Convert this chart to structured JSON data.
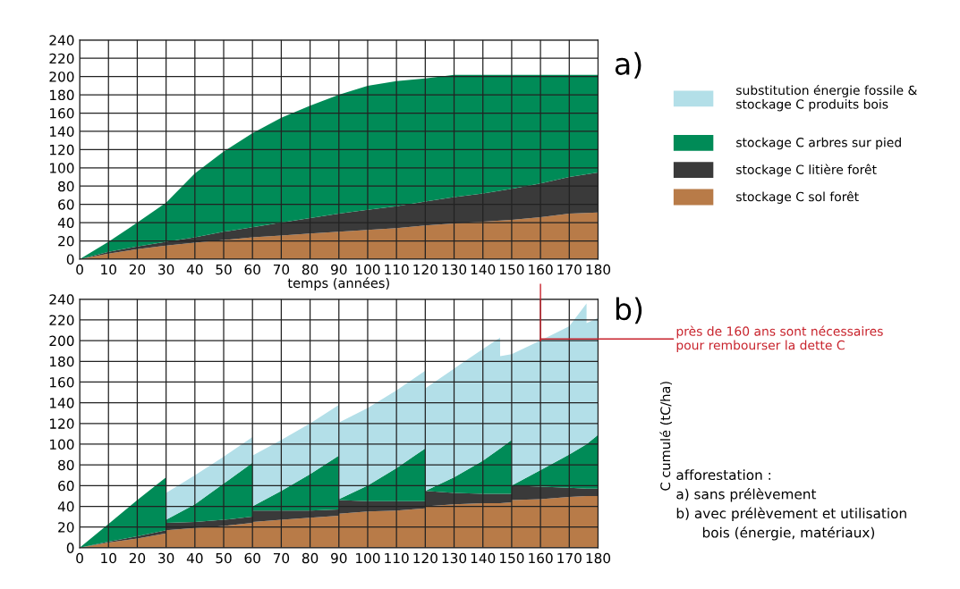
{
  "chart_data": [
    {
      "type": "area",
      "title": "a)",
      "xlabel": "temps (années)",
      "stacked": true,
      "xlim": [
        0,
        180
      ],
      "ylim": [
        0,
        240
      ],
      "xticks": [
        0,
        10,
        20,
        30,
        40,
        50,
        60,
        70,
        80,
        90,
        100,
        110,
        120,
        130,
        140,
        150,
        160,
        170,
        180
      ],
      "yticks": [
        0,
        20,
        40,
        60,
        80,
        100,
        120,
        140,
        160,
        180,
        200,
        220,
        240
      ],
      "grid": true,
      "legend": "right",
      "x": [
        0,
        10,
        20,
        30,
        40,
        50,
        60,
        70,
        80,
        90,
        100,
        110,
        120,
        130,
        140,
        150,
        160,
        170,
        180
      ],
      "series": [
        {
          "name": "stockage C sol forêt",
          "color": "#b87b48",
          "values": [
            0,
            6,
            11,
            15,
            18,
            21,
            24,
            26,
            28,
            30,
            32,
            34,
            37,
            39,
            41,
            43,
            46,
            50,
            51
          ]
        },
        {
          "name": "stockage C litière forêt",
          "color": "#3a3a3a",
          "values": [
            0,
            2,
            3,
            4,
            6,
            9,
            11,
            14,
            17,
            20,
            22,
            24,
            26,
            29,
            31,
            34,
            37,
            40,
            44
          ]
        },
        {
          "name": "stockage C arbres sur pied",
          "color": "#008b57",
          "values": [
            0,
            11,
            26,
            43,
            70,
            88,
            103,
            115,
            123,
            130,
            136,
            137,
            135,
            134,
            130,
            125,
            119,
            112,
            107
          ]
        }
      ]
    },
    {
      "type": "area",
      "title": "b)",
      "ylabel": "C cumulé (tC/ha)",
      "stacked": true,
      "xlim": [
        0,
        180
      ],
      "ylim": [
        0,
        240
      ],
      "xticks": [
        0,
        10,
        20,
        30,
        40,
        50,
        60,
        70,
        80,
        90,
        100,
        110,
        120,
        130,
        140,
        150,
        160,
        170,
        180
      ],
      "yticks": [
        0,
        20,
        40,
        60,
        80,
        100,
        120,
        140,
        160,
        180,
        200,
        220,
        240
      ],
      "grid": true,
      "legend": "top right",
      "ref_lines": [
        {
          "axis": "x",
          "value": 160,
          "color": "#c8232c"
        }
      ],
      "x": [
        0,
        10,
        20,
        30,
        30,
        40,
        50,
        60,
        60,
        70,
        80,
        90,
        90,
        100,
        110,
        120,
        120,
        130,
        140,
        146,
        146,
        150,
        150,
        160,
        170,
        176,
        176,
        180
      ],
      "series": [
        {
          "color": "#b87b48",
          "values": [
            0,
            5,
            9,
            14,
            17,
            19,
            21,
            24,
            25,
            27,
            29,
            31,
            33,
            35,
            36,
            38,
            40,
            42,
            43,
            43,
            43,
            44,
            46,
            47,
            49,
            50,
            50,
            50
          ]
        },
        {
          "color": "#3a3a3a",
          "values": [
            0,
            1,
            2,
            3,
            7,
            6,
            6,
            6,
            11,
            9,
            7,
            6,
            13,
            10,
            9,
            7,
            15,
            11,
            9,
            9,
            9,
            8,
            14,
            12,
            9,
            7,
            7,
            7
          ]
        },
        {
          "color": "#008b57",
          "values": [
            0,
            17,
            35,
            51,
            3,
            17,
            35,
            52,
            4,
            19,
            35,
            52,
            1,
            15,
            32,
            51,
            0,
            15,
            32,
            44,
            44,
            52,
            0,
            16,
            32,
            43,
            43,
            52
          ]
        },
        {
          "name": "substitution énergie fossile &\nstockage C produits bois",
          "color": "#b3dfe8",
          "values": [
            0,
            0,
            0,
            0,
            26,
            28,
            26,
            25,
            49,
            49,
            49,
            49,
            74,
            75,
            75,
            75,
            99,
            105,
            108,
            107,
            89,
            83,
            127,
            125,
            124,
            136,
            117,
            113
          ]
        }
      ],
      "annotations": [
        {
          "text": "près de 160 ans sont nécessaires\npour rembourser la dette C",
          "x": 160,
          "y": 200
        },
        "afforestation :\na) sans prélèvement\nb) avec prélèvement et utilisation\n      bois (énergie, matériaux)"
      ]
    }
  ]
}
